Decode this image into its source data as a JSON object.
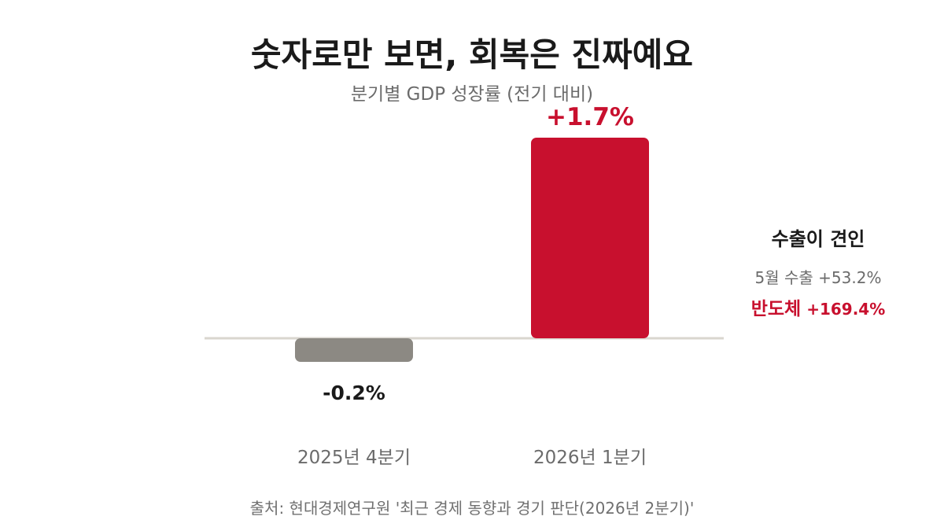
{
  "title": "숫자로만 보면, 회복은 진짜예요",
  "subtitle": "분기별 GDP 성장률 (전기 대비)",
  "chart_data": {
    "type": "bar",
    "categories": [
      "2025년 4분기",
      "2026년 1분기"
    ],
    "values": [
      -0.2,
      1.7
    ],
    "value_labels": [
      "-0.2%",
      "+1.7%"
    ],
    "unit": "%",
    "ylim": [
      -0.6,
      2.0
    ],
    "grid": false,
    "colors": [
      "#8c8983",
      "#c8102e"
    ],
    "label_colors": [
      "#1a1a1a",
      "#c8102e"
    ]
  },
  "annotation": {
    "heading": "수출이 견인",
    "line1": "5월 수출 +53.2%",
    "line2_label": "반도체",
    "line2_value": "+169.4%"
  },
  "source": "출처: 현대경제연구원 '최근 경제 동향과 경기 판단(2026년 2분기)'",
  "colors": {
    "accent": "#c8102e",
    "neutral_bar": "#8c8983",
    "baseline": "#d9d6cf",
    "text_primary": "#1a1a1a",
    "text_secondary": "#6b6b6b"
  }
}
